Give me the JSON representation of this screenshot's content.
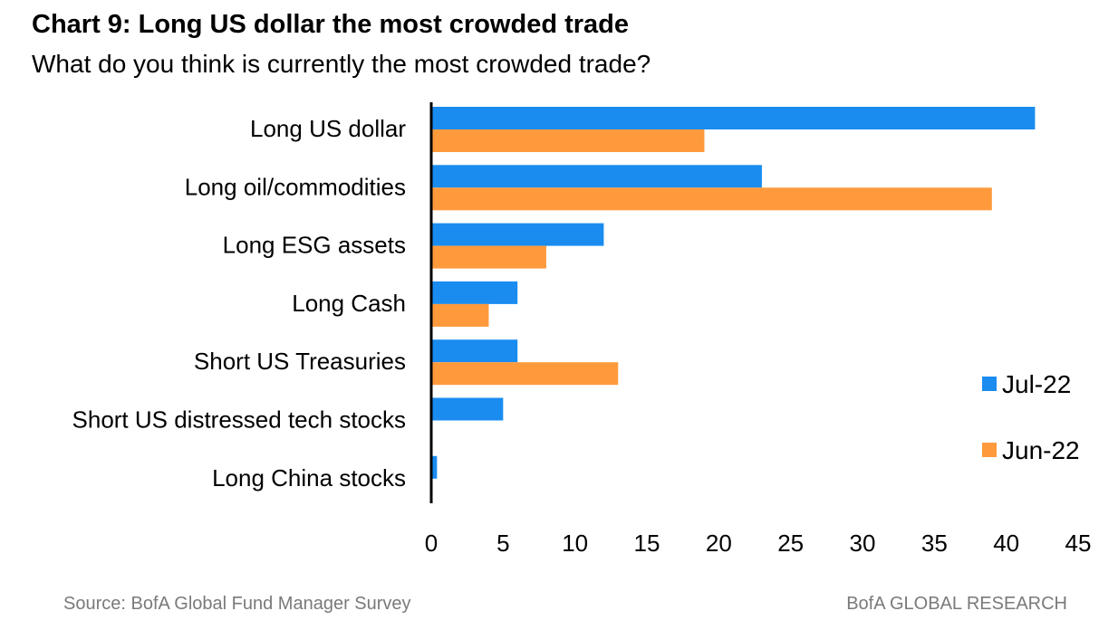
{
  "header": {
    "title": "Chart 9: Long US dollar the most crowded trade",
    "subtitle": "What do you think is currently the most crowded trade?"
  },
  "footer": {
    "source": "Source: BofA Global Fund Manager Survey",
    "brand": "BofA GLOBAL RESEARCH"
  },
  "colors": {
    "jul": "#1a8cf0",
    "jun": "#ff9a3c"
  },
  "chart_data": {
    "type": "bar",
    "orientation": "horizontal",
    "title": "Chart 9: Long US dollar the most crowded trade",
    "subtitle": "What do you think is currently the most crowded trade?",
    "categories": [
      "Long US dollar",
      "Long oil/commodities",
      "Long ESG assets",
      "Long Cash",
      "Short US Treasuries",
      "Short US distressed tech stocks",
      "Long China stocks"
    ],
    "series": [
      {
        "name": "Jul-22",
        "values": [
          42,
          23,
          12,
          6,
          6,
          5,
          0.4
        ]
      },
      {
        "name": "Jun-22",
        "values": [
          19,
          39,
          8,
          4,
          13,
          null,
          null
        ]
      }
    ],
    "xlim": [
      0,
      45
    ],
    "xticks": [
      0,
      5,
      10,
      15,
      20,
      25,
      30,
      35,
      40,
      45
    ],
    "legend": "right",
    "grid": false
  }
}
